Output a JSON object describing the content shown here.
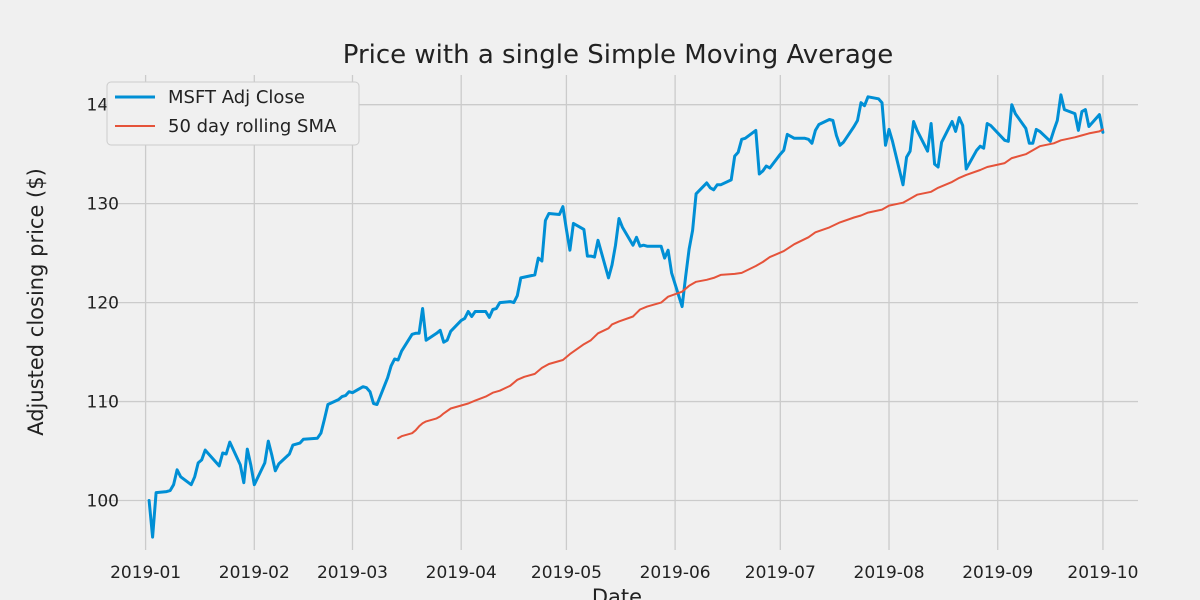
{
  "chart_data": {
    "type": "line",
    "title": "Price with a single Simple Moving Average",
    "xlabel": "Date",
    "ylabel": "Adjusted closing price ($)",
    "xlim": [
      "2018-12-19",
      "2019-10-11"
    ],
    "ylim": [
      95,
      143
    ],
    "x_ticks": [
      "2019-01",
      "2019-02",
      "2019-03",
      "2019-04",
      "2019-05",
      "2019-06",
      "2019-07",
      "2019-08",
      "2019-09",
      "2019-10"
    ],
    "y_ticks": [
      100,
      110,
      120,
      130,
      140
    ],
    "grid": true,
    "legend": {
      "position": "top-left"
    },
    "series": [
      {
        "name": "MSFT Adj Close",
        "color": "#008fd5",
        "points": [
          [
            "2019-01-02",
            100.0
          ],
          [
            "2019-01-03",
            96.3
          ],
          [
            "2019-01-04",
            100.8
          ],
          [
            "2019-01-07",
            100.9
          ],
          [
            "2019-01-08",
            101.0
          ],
          [
            "2019-01-09",
            101.6
          ],
          [
            "2019-01-10",
            103.1
          ],
          [
            "2019-01-11",
            102.4
          ],
          [
            "2019-01-14",
            101.6
          ],
          [
            "2019-01-15",
            102.4
          ],
          [
            "2019-01-16",
            103.8
          ],
          [
            "2019-01-17",
            104.1
          ],
          [
            "2019-01-18",
            105.1
          ],
          [
            "2019-01-22",
            103.5
          ],
          [
            "2019-01-23",
            104.8
          ],
          [
            "2019-01-24",
            104.7
          ],
          [
            "2019-01-25",
            105.9
          ],
          [
            "2019-01-28",
            103.6
          ],
          [
            "2019-01-29",
            101.8
          ],
          [
            "2019-01-30",
            105.2
          ],
          [
            "2019-01-31",
            103.6
          ],
          [
            "2019-02-01",
            101.6
          ],
          [
            "2019-02-04",
            103.8
          ],
          [
            "2019-02-05",
            106.0
          ],
          [
            "2019-02-06",
            104.6
          ],
          [
            "2019-02-07",
            103.0
          ],
          [
            "2019-02-08",
            103.7
          ],
          [
            "2019-02-11",
            104.7
          ],
          [
            "2019-02-12",
            105.6
          ],
          [
            "2019-02-13",
            105.7
          ],
          [
            "2019-02-14",
            105.8
          ],
          [
            "2019-02-15",
            106.2
          ],
          [
            "2019-02-19",
            106.3
          ],
          [
            "2019-02-20",
            106.8
          ],
          [
            "2019-02-21",
            108.2
          ],
          [
            "2019-02-22",
            109.7
          ],
          [
            "2019-02-25",
            110.2
          ],
          [
            "2019-02-26",
            110.5
          ],
          [
            "2019-02-27",
            110.6
          ],
          [
            "2019-02-28",
            111.0
          ],
          [
            "2019-03-01",
            110.9
          ],
          [
            "2019-03-04",
            111.5
          ],
          [
            "2019-03-05",
            111.4
          ],
          [
            "2019-03-06",
            111.0
          ],
          [
            "2019-03-07",
            109.8
          ],
          [
            "2019-03-08",
            109.7
          ],
          [
            "2019-03-11",
            112.4
          ],
          [
            "2019-03-12",
            113.6
          ],
          [
            "2019-03-13",
            114.3
          ],
          [
            "2019-03-14",
            114.2
          ],
          [
            "2019-03-15",
            115.1
          ],
          [
            "2019-03-18",
            116.8
          ],
          [
            "2019-03-19",
            116.9
          ],
          [
            "2019-03-20",
            116.9
          ],
          [
            "2019-03-21",
            119.4
          ],
          [
            "2019-03-22",
            116.2
          ],
          [
            "2019-03-25",
            116.9
          ],
          [
            "2019-03-26",
            117.2
          ],
          [
            "2019-03-27",
            116.0
          ],
          [
            "2019-03-28",
            116.2
          ],
          [
            "2019-03-29",
            117.1
          ],
          [
            "2019-04-01",
            118.2
          ],
          [
            "2019-04-02",
            118.4
          ],
          [
            "2019-04-03",
            119.1
          ],
          [
            "2019-04-04",
            118.6
          ],
          [
            "2019-04-05",
            119.1
          ],
          [
            "2019-04-08",
            119.1
          ],
          [
            "2019-04-09",
            118.5
          ],
          [
            "2019-04-10",
            119.3
          ],
          [
            "2019-04-11",
            119.4
          ],
          [
            "2019-04-12",
            120.0
          ],
          [
            "2019-04-15",
            120.1
          ],
          [
            "2019-04-16",
            120.0
          ],
          [
            "2019-04-17",
            120.7
          ],
          [
            "2019-04-18",
            122.5
          ],
          [
            "2019-04-22",
            122.8
          ],
          [
            "2019-04-23",
            124.5
          ],
          [
            "2019-04-24",
            124.2
          ],
          [
            "2019-04-25",
            128.3
          ],
          [
            "2019-04-26",
            129.0
          ],
          [
            "2019-04-29",
            128.9
          ],
          [
            "2019-04-30",
            129.7
          ],
          [
            "2019-05-01",
            127.4
          ],
          [
            "2019-05-02",
            125.3
          ],
          [
            "2019-05-03",
            128.0
          ],
          [
            "2019-05-06",
            127.4
          ],
          [
            "2019-05-07",
            124.7
          ],
          [
            "2019-05-08",
            124.7
          ],
          [
            "2019-05-09",
            124.6
          ],
          [
            "2019-05-10",
            126.3
          ],
          [
            "2019-05-13",
            122.5
          ],
          [
            "2019-05-14",
            123.8
          ],
          [
            "2019-05-15",
            125.8
          ],
          [
            "2019-05-16",
            128.5
          ],
          [
            "2019-05-17",
            127.6
          ],
          [
            "2019-05-20",
            125.8
          ],
          [
            "2019-05-21",
            126.6
          ],
          [
            "2019-05-22",
            125.7
          ],
          [
            "2019-05-23",
            125.8
          ],
          [
            "2019-05-24",
            125.7
          ],
          [
            "2019-05-28",
            125.7
          ],
          [
            "2019-05-29",
            124.5
          ],
          [
            "2019-05-30",
            125.3
          ],
          [
            "2019-05-31",
            123.0
          ],
          [
            "2019-06-03",
            119.6
          ],
          [
            "2019-06-04",
            122.6
          ],
          [
            "2019-06-05",
            125.4
          ],
          [
            "2019-06-06",
            127.3
          ],
          [
            "2019-06-07",
            131.0
          ],
          [
            "2019-06-10",
            132.1
          ],
          [
            "2019-06-11",
            131.6
          ],
          [
            "2019-06-12",
            131.4
          ],
          [
            "2019-06-13",
            131.9
          ],
          [
            "2019-06-14",
            131.9
          ],
          [
            "2019-06-17",
            132.4
          ],
          [
            "2019-06-18",
            134.8
          ],
          [
            "2019-06-19",
            135.2
          ],
          [
            "2019-06-20",
            136.5
          ],
          [
            "2019-06-21",
            136.6
          ],
          [
            "2019-06-24",
            137.4
          ],
          [
            "2019-06-25",
            133.0
          ],
          [
            "2019-06-26",
            133.3
          ],
          [
            "2019-06-27",
            133.8
          ],
          [
            "2019-06-28",
            133.6
          ],
          [
            "2019-07-01",
            135.0
          ],
          [
            "2019-07-02",
            135.4
          ],
          [
            "2019-07-03",
            137.0
          ],
          [
            "2019-07-05",
            136.6
          ],
          [
            "2019-07-08",
            136.6
          ],
          [
            "2019-07-09",
            136.5
          ],
          [
            "2019-07-10",
            136.1
          ],
          [
            "2019-07-11",
            137.4
          ],
          [
            "2019-07-12",
            138.0
          ],
          [
            "2019-07-15",
            138.5
          ],
          [
            "2019-07-16",
            138.4
          ],
          [
            "2019-07-17",
            136.9
          ],
          [
            "2019-07-18",
            135.9
          ],
          [
            "2019-07-19",
            136.2
          ],
          [
            "2019-07-22",
            137.8
          ],
          [
            "2019-07-23",
            138.4
          ],
          [
            "2019-07-24",
            140.2
          ],
          [
            "2019-07-25",
            139.9
          ],
          [
            "2019-07-26",
            140.8
          ],
          [
            "2019-07-29",
            140.6
          ],
          [
            "2019-07-30",
            140.2
          ],
          [
            "2019-07-31",
            135.9
          ],
          [
            "2019-08-01",
            137.5
          ],
          [
            "2019-08-02",
            136.3
          ],
          [
            "2019-08-05",
            131.9
          ],
          [
            "2019-08-06",
            134.7
          ],
          [
            "2019-08-07",
            135.3
          ],
          [
            "2019-08-08",
            138.3
          ],
          [
            "2019-08-09",
            137.4
          ],
          [
            "2019-08-12",
            135.3
          ],
          [
            "2019-08-13",
            138.1
          ],
          [
            "2019-08-14",
            134.0
          ],
          [
            "2019-08-15",
            133.7
          ],
          [
            "2019-08-16",
            136.2
          ],
          [
            "2019-08-19",
            138.3
          ],
          [
            "2019-08-20",
            137.3
          ],
          [
            "2019-08-21",
            138.7
          ],
          [
            "2019-08-22",
            137.9
          ],
          [
            "2019-08-23",
            133.5
          ],
          [
            "2019-08-26",
            135.4
          ],
          [
            "2019-08-27",
            135.8
          ],
          [
            "2019-08-28",
            135.6
          ],
          [
            "2019-08-29",
            138.1
          ],
          [
            "2019-08-30",
            137.9
          ],
          [
            "2019-09-03",
            136.4
          ],
          [
            "2019-09-04",
            136.3
          ],
          [
            "2019-09-05",
            140.0
          ],
          [
            "2019-09-06",
            139.1
          ],
          [
            "2019-09-09",
            137.6
          ],
          [
            "2019-09-10",
            136.1
          ],
          [
            "2019-09-11",
            136.1
          ],
          [
            "2019-09-12",
            137.5
          ],
          [
            "2019-09-13",
            137.3
          ],
          [
            "2019-09-16",
            136.3
          ],
          [
            "2019-09-17",
            137.4
          ],
          [
            "2019-09-18",
            138.4
          ],
          [
            "2019-09-19",
            141.0
          ],
          [
            "2019-09-20",
            139.5
          ],
          [
            "2019-09-23",
            139.1
          ],
          [
            "2019-09-24",
            137.4
          ],
          [
            "2019-09-25",
            139.3
          ],
          [
            "2019-09-26",
            139.5
          ],
          [
            "2019-09-27",
            137.8
          ],
          [
            "2019-09-30",
            139.0
          ],
          [
            "2019-10-01",
            137.2
          ]
        ]
      },
      {
        "name": "50 day rolling SMA",
        "color": "#e5533a",
        "points": [
          [
            "2019-03-14",
            106.3
          ],
          [
            "2019-03-15",
            106.5
          ],
          [
            "2019-03-18",
            106.8
          ],
          [
            "2019-03-19",
            107.1
          ],
          [
            "2019-03-20",
            107.5
          ],
          [
            "2019-03-21",
            107.8
          ],
          [
            "2019-03-22",
            108.0
          ],
          [
            "2019-03-25",
            108.3
          ],
          [
            "2019-03-26",
            108.5
          ],
          [
            "2019-03-27",
            108.8
          ],
          [
            "2019-03-29",
            109.3
          ],
          [
            "2019-04-01",
            109.6
          ],
          [
            "2019-04-03",
            109.8
          ],
          [
            "2019-04-05",
            110.1
          ],
          [
            "2019-04-08",
            110.5
          ],
          [
            "2019-04-10",
            110.9
          ],
          [
            "2019-04-12",
            111.1
          ],
          [
            "2019-04-15",
            111.6
          ],
          [
            "2019-04-17",
            112.2
          ],
          [
            "2019-04-19",
            112.5
          ],
          [
            "2019-04-22",
            112.8
          ],
          [
            "2019-04-24",
            113.4
          ],
          [
            "2019-04-26",
            113.8
          ],
          [
            "2019-04-30",
            114.2
          ],
          [
            "2019-05-02",
            114.8
          ],
          [
            "2019-05-06",
            115.8
          ],
          [
            "2019-05-08",
            116.2
          ],
          [
            "2019-05-10",
            116.9
          ],
          [
            "2019-05-13",
            117.4
          ],
          [
            "2019-05-14",
            117.8
          ],
          [
            "2019-05-16",
            118.1
          ],
          [
            "2019-05-20",
            118.6
          ],
          [
            "2019-05-22",
            119.3
          ],
          [
            "2019-05-24",
            119.6
          ],
          [
            "2019-05-28",
            120.0
          ],
          [
            "2019-05-30",
            120.6
          ],
          [
            "2019-06-03",
            121.1
          ],
          [
            "2019-06-05",
            121.7
          ],
          [
            "2019-06-07",
            122.1
          ],
          [
            "2019-06-10",
            122.3
          ],
          [
            "2019-06-12",
            122.5
          ],
          [
            "2019-06-14",
            122.8
          ],
          [
            "2019-06-18",
            122.9
          ],
          [
            "2019-06-20",
            123.0
          ],
          [
            "2019-06-24",
            123.7
          ],
          [
            "2019-06-26",
            124.1
          ],
          [
            "2019-06-28",
            124.6
          ],
          [
            "2019-07-02",
            125.2
          ],
          [
            "2019-07-05",
            125.9
          ],
          [
            "2019-07-09",
            126.6
          ],
          [
            "2019-07-11",
            127.1
          ],
          [
            "2019-07-15",
            127.6
          ],
          [
            "2019-07-18",
            128.1
          ],
          [
            "2019-07-22",
            128.6
          ],
          [
            "2019-07-24",
            128.8
          ],
          [
            "2019-07-26",
            129.1
          ],
          [
            "2019-07-30",
            129.4
          ],
          [
            "2019-08-01",
            129.8
          ],
          [
            "2019-08-05",
            130.1
          ],
          [
            "2019-08-07",
            130.5
          ],
          [
            "2019-08-09",
            130.9
          ],
          [
            "2019-08-13",
            131.2
          ],
          [
            "2019-08-15",
            131.6
          ],
          [
            "2019-08-19",
            132.2
          ],
          [
            "2019-08-21",
            132.6
          ],
          [
            "2019-08-23",
            132.9
          ],
          [
            "2019-08-27",
            133.4
          ],
          [
            "2019-08-29",
            133.7
          ],
          [
            "2019-09-03",
            134.1
          ],
          [
            "2019-09-05",
            134.6
          ],
          [
            "2019-09-09",
            135.0
          ],
          [
            "2019-09-11",
            135.4
          ],
          [
            "2019-09-13",
            135.8
          ],
          [
            "2019-09-17",
            136.1
          ],
          [
            "2019-09-19",
            136.4
          ],
          [
            "2019-09-23",
            136.7
          ],
          [
            "2019-09-25",
            136.9
          ],
          [
            "2019-09-27",
            137.1
          ],
          [
            "2019-09-30",
            137.3
          ],
          [
            "2019-10-01",
            137.5
          ]
        ]
      }
    ]
  }
}
